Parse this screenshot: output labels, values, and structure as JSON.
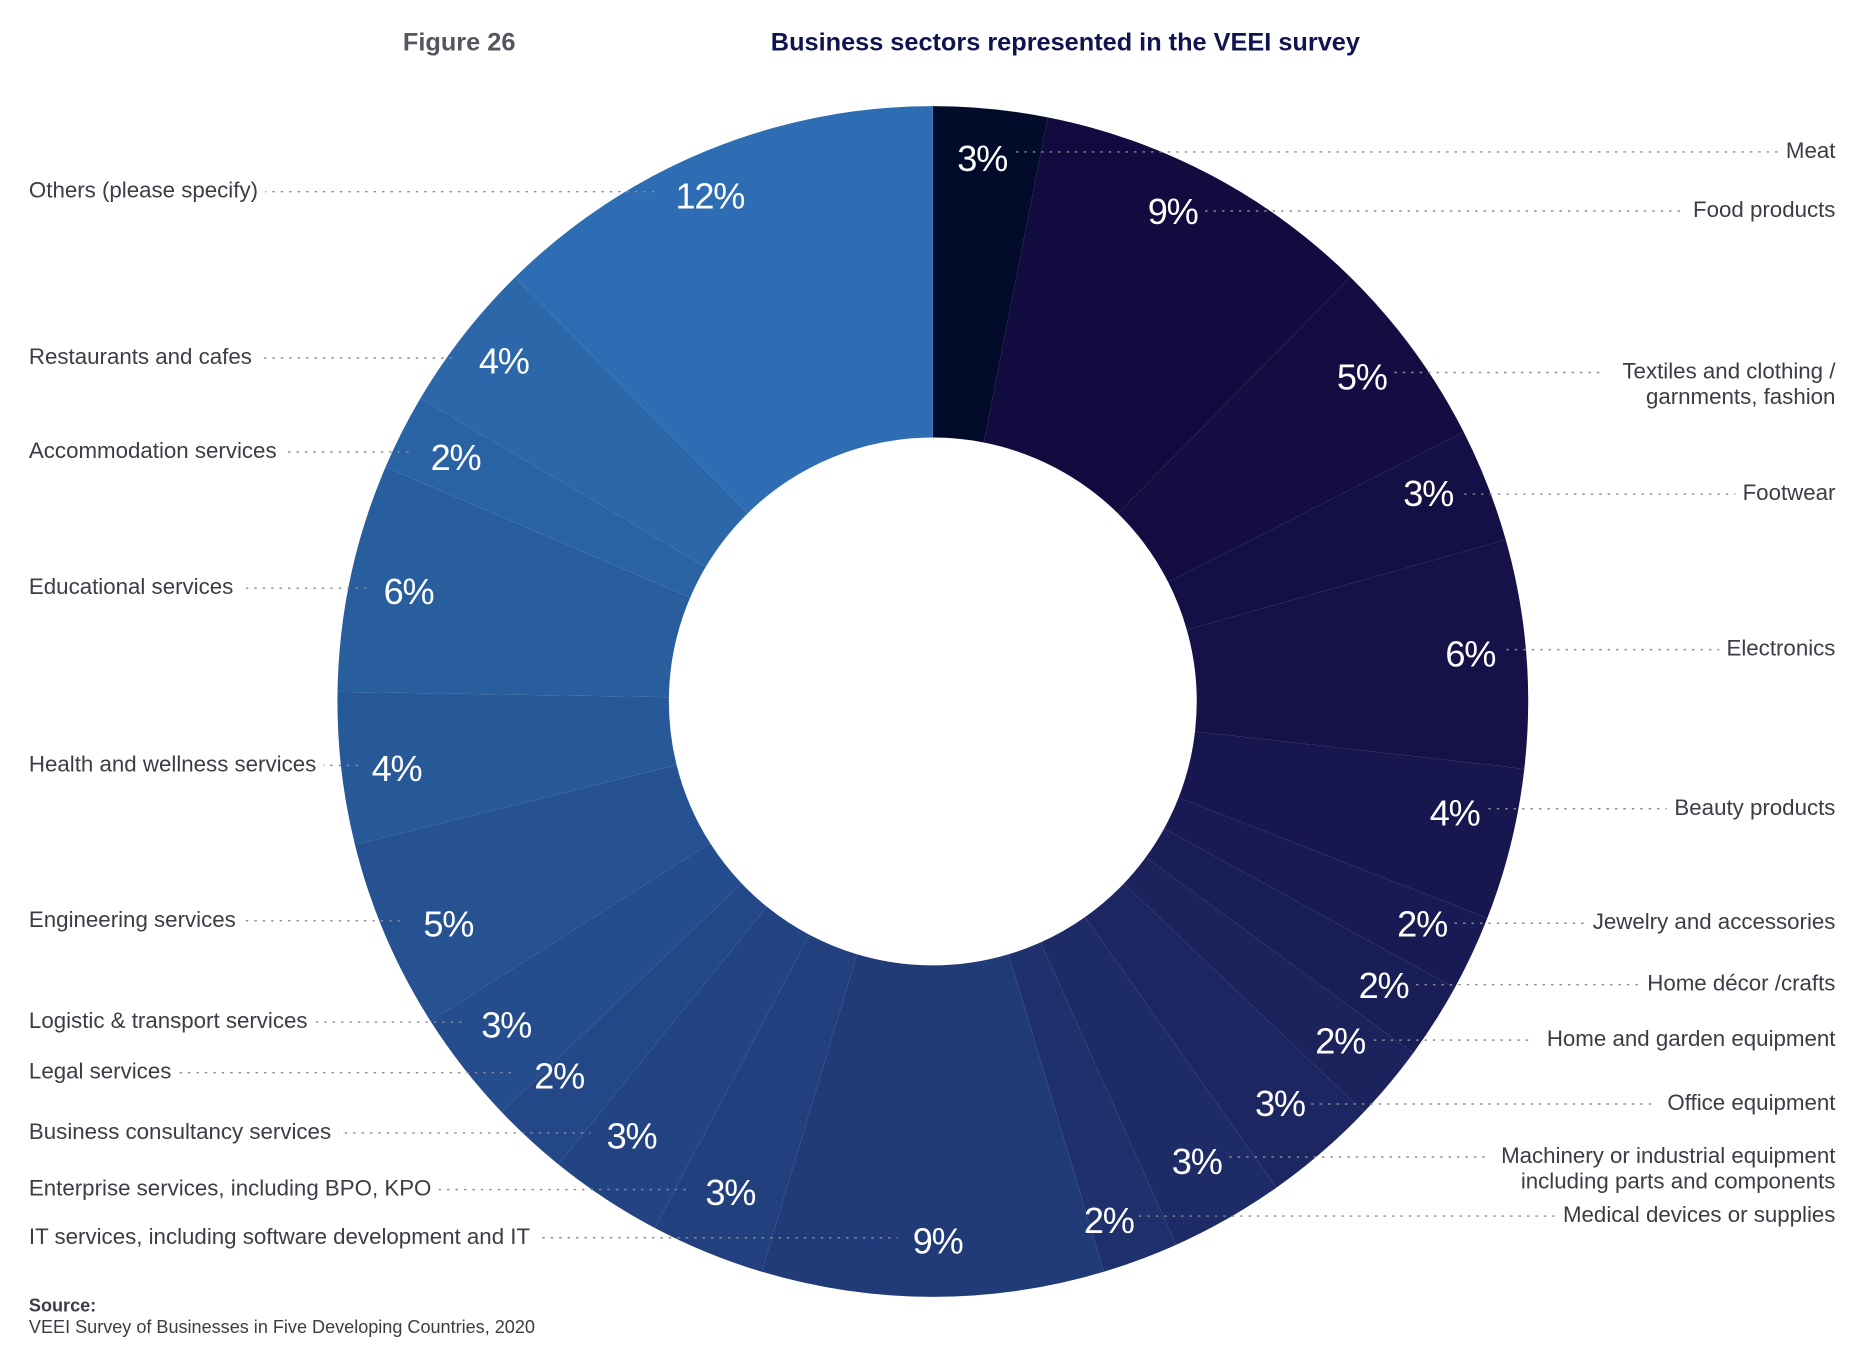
{
  "figure_label": "Figure 26",
  "source_label": "Source:",
  "source_text": "VEEI Survey of Businesses in Five Developing Countries, 2020",
  "chart_data": {
    "type": "pie",
    "variant": "donut",
    "title": "Business sectors represented in the VEEI survey",
    "unit": "%",
    "start": "top, clockwise",
    "color_start": "#030b2b",
    "color_end": "#2e6db4",
    "slices": [
      {
        "label": "Meat",
        "value": 3,
        "display": "3%",
        "color": "#030b2b"
      },
      {
        "label": "Food products",
        "value": 9,
        "display": "9%",
        "color": "#110b3f"
      },
      {
        "label": "Textiles and clothing / garnments, fashion",
        "lines": [
          "Textiles and clothing /",
          "garnments, fashion"
        ],
        "value": 5,
        "display": "5%",
        "color": "#130d42"
      },
      {
        "label": "Footwear",
        "value": 3,
        "display": "3%",
        "color": "#140f45"
      },
      {
        "label": "Electronics",
        "value": 6,
        "display": "6%",
        "color": "#161249"
      },
      {
        "label": "Beauty products",
        "value": 4,
        "display": "4%",
        "color": "#17164e"
      },
      {
        "label": "Jewelry and accessories",
        "value": 2,
        "display": "2%",
        "color": "#181a53"
      },
      {
        "label": "Home décor /crafts",
        "value": 2,
        "display": "2%",
        "color": "#1a1e57"
      },
      {
        "label": "Home and garden equipment",
        "value": 2,
        "display": "2%",
        "color": "#1b225c"
      },
      {
        "label": "Office equipment",
        "value": 3,
        "display": "3%",
        "color": "#1c2762"
      },
      {
        "label": "Machinery or industrial equipment including parts and components",
        "lines": [
          "Machinery or industrial equipment",
          "including parts and components"
        ],
        "value": 3,
        "display": "3%",
        "color": "#1d2c67"
      },
      {
        "label": "Medical devices or supplies",
        "value": 2,
        "display": "2%",
        "color": "#1f316d"
      },
      {
        "label": "IT services, including software development and IT",
        "value": 9,
        "display": "9%",
        "color": "#213a78"
      },
      {
        "label": "Enterprise services, including BPO, KPO",
        "value": 3,
        "display": "3%",
        "color": "#223f7e"
      },
      {
        "label": "Business consultancy services",
        "value": 3,
        "display": "3%",
        "color": "#234483"
      },
      {
        "label": "Legal services",
        "value": 2,
        "display": "2%",
        "color": "#244887"
      },
      {
        "label": "Logistic & transport services",
        "value": 3,
        "display": "3%",
        "color": "#254c8c"
      },
      {
        "label": "Engineering services",
        "value": 5,
        "display": "5%",
        "color": "#265292"
      },
      {
        "label": "Health and wellness services",
        "value": 4,
        "display": "4%",
        "color": "#275897"
      },
      {
        "label": "Educational services",
        "value": 6,
        "display": "6%",
        "color": "#295e9e"
      },
      {
        "label": "Accommodation services",
        "value": 2,
        "display": "2%",
        "color": "#2a63a4"
      },
      {
        "label": "Restaurants and cafes",
        "value": 4,
        "display": "4%",
        "color": "#2b67a9"
      },
      {
        "label": "Others (please specify)",
        "value": 12,
        "display": "12%",
        "color": "#2e6db4"
      }
    ]
  }
}
